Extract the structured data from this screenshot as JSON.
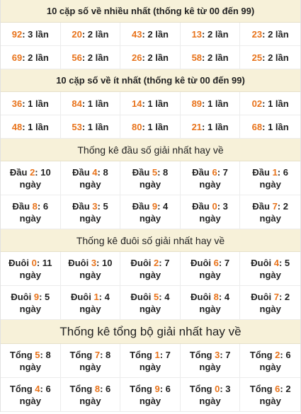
{
  "sections": [
    {
      "title": "10 cặp số về nhiều nhất (thống kê từ 00 đến 99)",
      "style": "bold",
      "kind": "pairs",
      "cells": [
        {
          "num": "92",
          "rest": ": 3 lần"
        },
        {
          "num": "20",
          "rest": ": 2 lần"
        },
        {
          "num": "43",
          "rest": ": 2 lần"
        },
        {
          "num": "13",
          "rest": ": 2 lần"
        },
        {
          "num": "23",
          "rest": ": 2 lần"
        },
        {
          "num": "69",
          "rest": ": 2 lần"
        },
        {
          "num": "56",
          "rest": ": 2 lần"
        },
        {
          "num": "26",
          "rest": ": 2 lần"
        },
        {
          "num": "58",
          "rest": ": 2 lần"
        },
        {
          "num": "25",
          "rest": ": 2 lần"
        }
      ]
    },
    {
      "title": "10 cặp số về ít nhất (thống kê từ 00 đến 99)",
      "style": "bold",
      "kind": "pairs",
      "cells": [
        {
          "num": "36",
          "rest": ": 1 lần"
        },
        {
          "num": "84",
          "rest": ": 1 lần"
        },
        {
          "num": "14",
          "rest": ": 1 lần"
        },
        {
          "num": "89",
          "rest": ": 1 lần"
        },
        {
          "num": "02",
          "rest": ": 1 lần"
        },
        {
          "num": "48",
          "rest": ": 1 lần"
        },
        {
          "num": "53",
          "rest": ": 1 lần"
        },
        {
          "num": "80",
          "rest": ": 1 lần"
        },
        {
          "num": "21",
          "rest": ": 1 lần"
        },
        {
          "num": "68",
          "rest": ": 1 lần"
        }
      ]
    },
    {
      "title": "Thống kê đầu số giải nhất hay về",
      "style": "normal",
      "kind": "stats",
      "cells": [
        {
          "label": "Đầu ",
          "num": "2",
          "rest": ": 10 ngày"
        },
        {
          "label": "Đầu ",
          "num": "4",
          "rest": ": 8 ngày"
        },
        {
          "label": "Đầu ",
          "num": "5",
          "rest": ": 8 ngày"
        },
        {
          "label": "Đầu ",
          "num": "6",
          "rest": ": 7 ngày"
        },
        {
          "label": "Đầu ",
          "num": "1",
          "rest": ": 6 ngày"
        },
        {
          "label": "Đầu ",
          "num": "8",
          "rest": ": 6 ngày"
        },
        {
          "label": "Đầu ",
          "num": "3",
          "rest": ": 5 ngày"
        },
        {
          "label": "Đầu ",
          "num": "9",
          "rest": ": 4 ngày"
        },
        {
          "label": "Đầu ",
          "num": "0",
          "rest": ": 3 ngày"
        },
        {
          "label": "Đầu ",
          "num": "7",
          "rest": ": 2 ngày"
        }
      ]
    },
    {
      "title": "Thống kê đuôi số giải nhất hay về",
      "style": "normal",
      "kind": "stats",
      "cells": [
        {
          "label": "Đuôi ",
          "num": "0",
          "rest": ": 11 ngày"
        },
        {
          "label": "Đuôi ",
          "num": "3",
          "rest": ": 10 ngày"
        },
        {
          "label": "Đuôi ",
          "num": "2",
          "rest": ": 7 ngày"
        },
        {
          "label": "Đuôi ",
          "num": "6",
          "rest": ": 7 ngày"
        },
        {
          "label": "Đuôi ",
          "num": "4",
          "rest": ": 5 ngày"
        },
        {
          "label": "Đuôi ",
          "num": "9",
          "rest": ": 5 ngày"
        },
        {
          "label": "Đuôi ",
          "num": "1",
          "rest": ": 4 ngày"
        },
        {
          "label": "Đuôi ",
          "num": "5",
          "rest": ": 4 ngày"
        },
        {
          "label": "Đuôi ",
          "num": "8",
          "rest": ": 4 ngày"
        },
        {
          "label": "Đuôi ",
          "num": "7",
          "rest": ": 2 ngày"
        }
      ]
    },
    {
      "title": "Thống kê tổng bộ giải nhất hay về",
      "style": "large",
      "kind": "stats",
      "cells": [
        {
          "label": "Tổng ",
          "num": "5",
          "rest": ": 8 ngày"
        },
        {
          "label": "Tổng ",
          "num": "7",
          "rest": ": 8 ngày"
        },
        {
          "label": "Tổng ",
          "num": "1",
          "rest": ": 7 ngày"
        },
        {
          "label": "Tổng ",
          "num": "3",
          "rest": ": 7 ngày"
        },
        {
          "label": "Tổng ",
          "num": "2",
          "rest": ": 6 ngày"
        },
        {
          "label": "Tổng ",
          "num": "4",
          "rest": ": 6 ngày"
        },
        {
          "label": "Tổng ",
          "num": "8",
          "rest": ": 6 ngày"
        },
        {
          "label": "Tổng ",
          "num": "9",
          "rest": ": 6 ngày"
        },
        {
          "label": "Tổng ",
          "num": "0",
          "rest": ": 3 ngày"
        },
        {
          "label": "Tổng ",
          "num": "6",
          "rest": ": 2 ngày"
        }
      ]
    }
  ],
  "colors": {
    "header_bg": "#f7f1d9",
    "highlight": "#e8731b",
    "text": "#222222"
  }
}
